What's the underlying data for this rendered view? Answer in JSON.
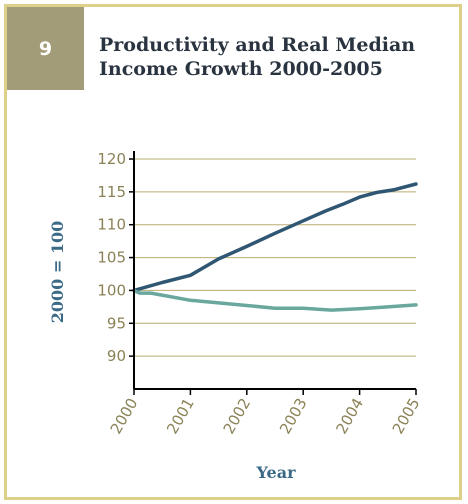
{
  "figure": {
    "number": "9",
    "title_line1": "Productivity and Real Median",
    "title_line2": "Income Growth 2000-2005"
  },
  "colors": {
    "border": "#ded089",
    "badge": "#a39c79",
    "grid": "#b8ad72",
    "axis": "#000000",
    "ticks": "#8a8256",
    "productivity": "#2f5673",
    "income": "#6aa89e",
    "axis_label": "#3b6a87"
  },
  "chart_data": {
    "type": "line",
    "xlabel": "Year",
    "ylabel": "2000 = 100",
    "xlim": [
      2000,
      2005
    ],
    "ylim": [
      85,
      120
    ],
    "x_ticks": [
      "2000",
      "2001",
      "2002",
      "2003",
      "2004",
      "2005"
    ],
    "y_ticks": [
      "90",
      "95",
      "100",
      "105",
      "110",
      "115",
      "120"
    ],
    "grid": true,
    "series": [
      {
        "color_key": "productivity",
        "points": [
          [
            2000,
            100
          ],
          [
            2000.5,
            101.2
          ],
          [
            2001,
            102.3
          ],
          [
            2001.5,
            104.8
          ],
          [
            2002,
            106.7
          ],
          [
            2002.5,
            108.7
          ],
          [
            2003,
            110.6
          ],
          [
            2003.4,
            112.1
          ],
          [
            2003.7,
            113.1
          ],
          [
            2004,
            114.2
          ],
          [
            2004.3,
            114.9
          ],
          [
            2004.6,
            115.3
          ],
          [
            2005,
            116.2
          ]
        ]
      },
      {
        "color_key": "income",
        "points": [
          [
            2000,
            100
          ],
          [
            2000.1,
            99.6
          ],
          [
            2000.3,
            99.6
          ],
          [
            2001,
            98.5
          ],
          [
            2001.5,
            98.1
          ],
          [
            2002,
            97.7
          ],
          [
            2002.5,
            97.3
          ],
          [
            2003,
            97.3
          ],
          [
            2003.5,
            97.0
          ],
          [
            2004,
            97.2
          ],
          [
            2004.5,
            97.5
          ],
          [
            2005,
            97.8
          ]
        ]
      }
    ]
  }
}
